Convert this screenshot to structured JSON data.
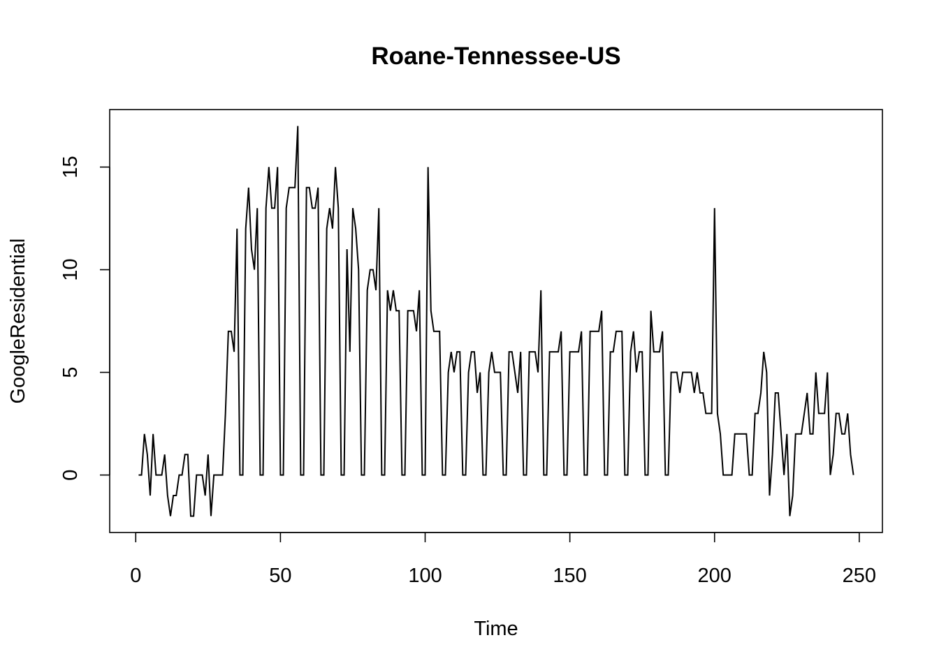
{
  "chart_data": {
    "type": "line",
    "title": "Roane-Tennessee-US",
    "xlabel": "Time",
    "ylabel": "GoogleResidential",
    "xlim": [
      -9,
      258
    ],
    "ylim": [
      -2.8,
      17.8
    ],
    "x_ticks": [
      0,
      50,
      100,
      150,
      200,
      250
    ],
    "y_ticks": [
      0,
      5,
      10,
      15
    ],
    "grid": false,
    "line_color": "#000000",
    "x_start": 1,
    "series": [
      {
        "values": [
          0,
          0,
          2,
          1,
          -1,
          2,
          0,
          0,
          0,
          1,
          -1,
          -2,
          -1,
          -1,
          0,
          0,
          1,
          1,
          -2,
          -2,
          0,
          0,
          0,
          -1,
          1,
          -2,
          0,
          0,
          0,
          0,
          3,
          7,
          7,
          6,
          12,
          0,
          0,
          12,
          14,
          11,
          10,
          13,
          0,
          0,
          13,
          15,
          13,
          13,
          15,
          0,
          0,
          13,
          14,
          14,
          14,
          17,
          0,
          0,
          14,
          14,
          13,
          13,
          14,
          0,
          0,
          12,
          13,
          12,
          15,
          13,
          0,
          0,
          11,
          6,
          13,
          12,
          10,
          0,
          0,
          9,
          10,
          10,
          9,
          13,
          0,
          0,
          9,
          8,
          9,
          8,
          8,
          0,
          0,
          8,
          8,
          8,
          7,
          9,
          0,
          0,
          15,
          8,
          7,
          7,
          7,
          0,
          0,
          5,
          6,
          5,
          6,
          6,
          0,
          0,
          5,
          6,
          6,
          4,
          5,
          0,
          0,
          5,
          6,
          5,
          5,
          5,
          0,
          0,
          6,
          6,
          5,
          4,
          6,
          0,
          0,
          6,
          6,
          6,
          5,
          9,
          0,
          0,
          6,
          6,
          6,
          6,
          7,
          0,
          0,
          6,
          6,
          6,
          6,
          7,
          0,
          0,
          7,
          7,
          7,
          7,
          8,
          0,
          0,
          6,
          6,
          7,
          7,
          7,
          0,
          0,
          6,
          7,
          5,
          6,
          6,
          0,
          0,
          8,
          6,
          6,
          6,
          7,
          0,
          0,
          5,
          5,
          5,
          4,
          5,
          5,
          5,
          5,
          4,
          5,
          4,
          4,
          3,
          3,
          3,
          13,
          3,
          2,
          0,
          0,
          0,
          0,
          2,
          2,
          2,
          2,
          2,
          0,
          0,
          3,
          3,
          4,
          6,
          5,
          -1,
          1,
          4,
          4,
          2,
          0,
          2,
          -2,
          -1,
          2,
          2,
          2,
          3,
          4,
          2,
          2,
          5,
          3,
          3,
          3,
          5,
          0,
          1,
          3,
          3,
          2,
          2,
          3,
          1,
          0
        ]
      }
    ]
  }
}
